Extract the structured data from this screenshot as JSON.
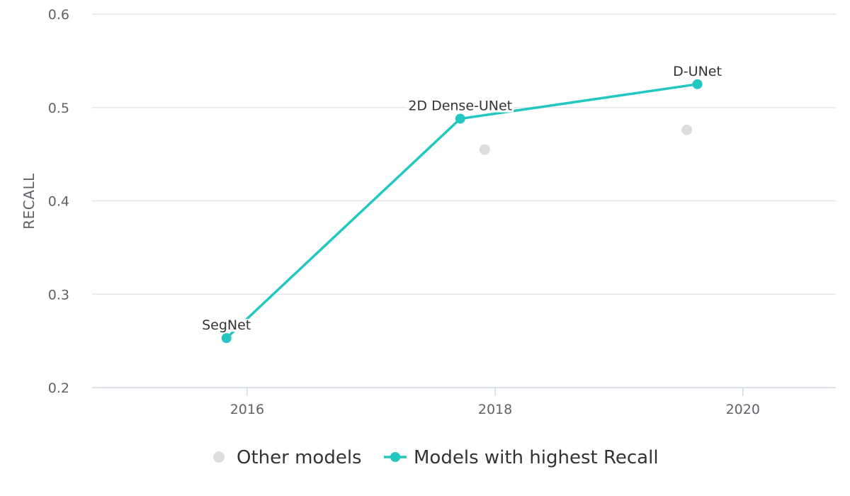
{
  "chart_data": {
    "type": "scatter",
    "title": "",
    "xlabel": "",
    "ylabel": "RECALL",
    "xlim": [
      "2014-10-01",
      "2020-10-01"
    ],
    "ylim": [
      0.2,
      0.6
    ],
    "yticks": [
      0.2,
      0.3,
      0.4,
      0.5,
      0.6
    ],
    "xticks": [
      "2016-01-01",
      "2018-01-01",
      "2020-01-01"
    ],
    "ytick_labels": [
      "0.2",
      "0.3",
      "0.4",
      "0.5",
      "0.6"
    ],
    "xtick_labels": [
      "2016",
      "2018",
      "2020"
    ],
    "grid": true,
    "legend_position": "bottom-center",
    "series": [
      {
        "name": "Other models",
        "type": "scatter",
        "color": "#dddddd",
        "points": [
          {
            "x": "2017-12-01",
            "y": 0.455
          },
          {
            "x": "2019-07-20",
            "y": 0.476
          }
        ]
      },
      {
        "name": "Models with highest Recall",
        "type": "line",
        "color": "#21c7c0",
        "points": [
          {
            "x": "2015-11-01",
            "y": 0.253,
            "label": "SegNet"
          },
          {
            "x": "2017-09-20",
            "y": 0.488,
            "label": "2D Dense-UNet"
          },
          {
            "x": "2019-08-20",
            "y": 0.525,
            "label": "D-UNet"
          }
        ]
      }
    ]
  }
}
